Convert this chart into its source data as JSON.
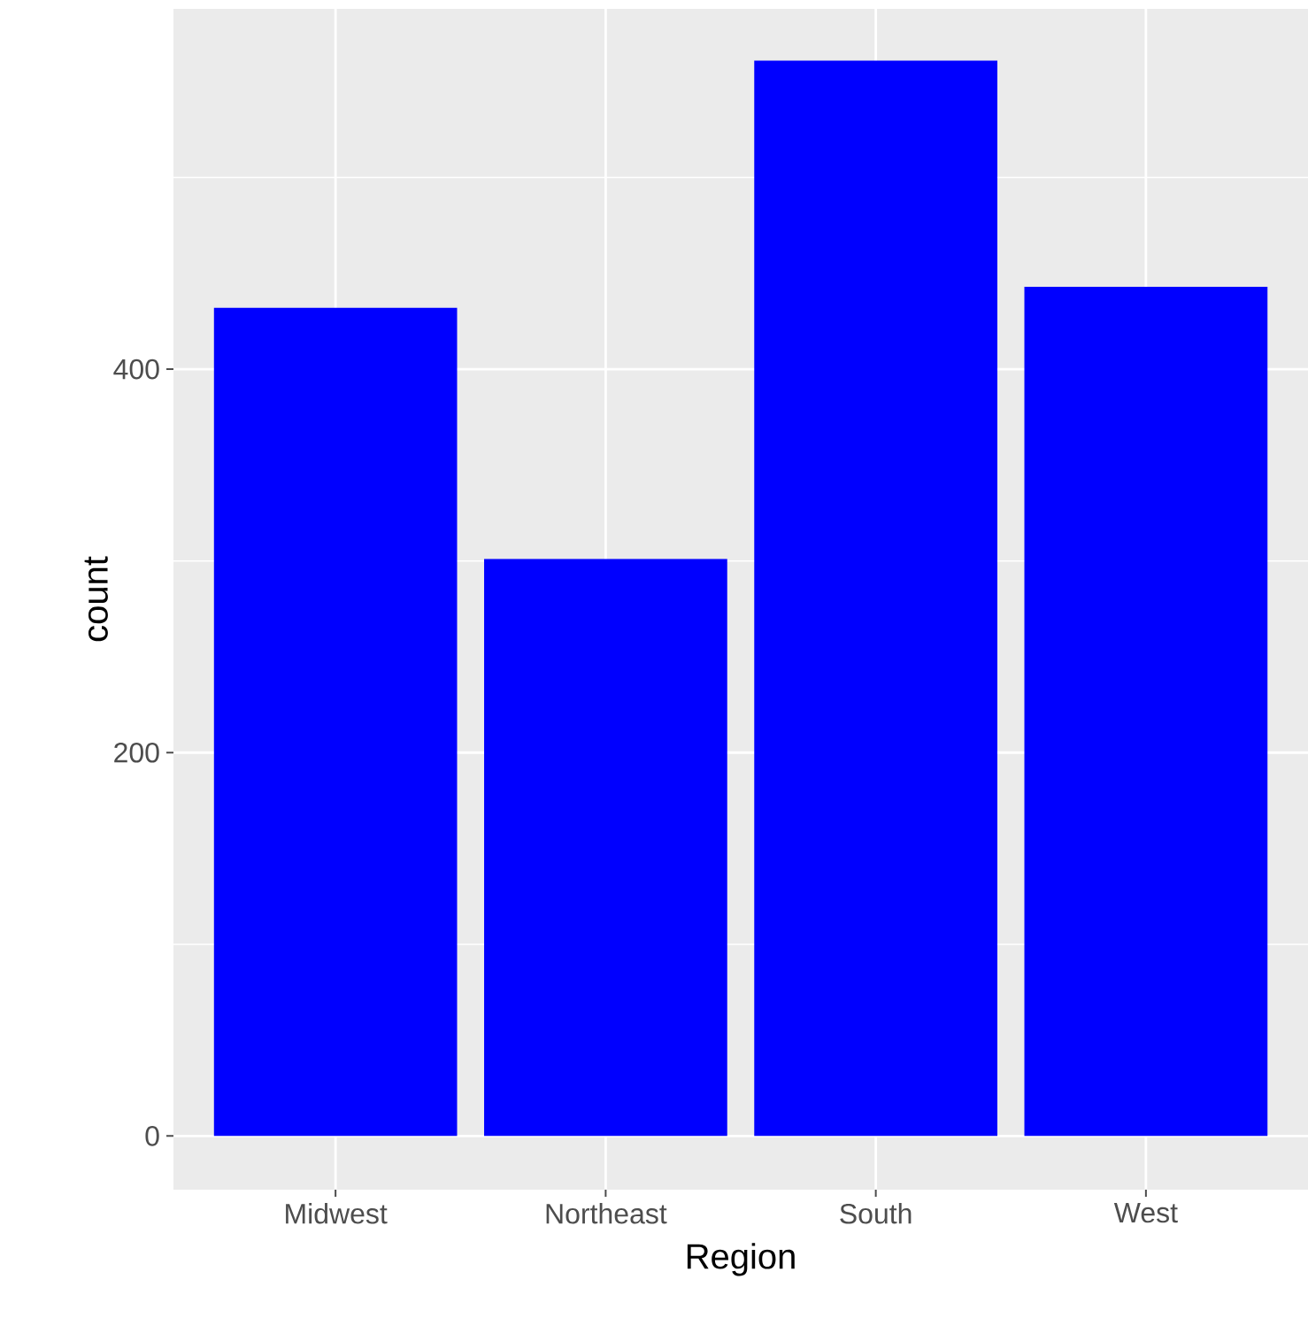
{
  "chart_data": {
    "type": "bar",
    "xlabel": "Region",
    "ylabel": "count",
    "categories": [
      "Midwest",
      "Northeast",
      "South",
      "West"
    ],
    "values": [
      432,
      301,
      561,
      443
    ],
    "color": "#0000ff",
    "ylim": [
      -28,
      588
    ],
    "yticks": [
      0,
      {
        "value": 100,
        "label": null
      },
      200,
      {
        "value": 300,
        "label": null
      },
      400,
      {
        "value": 500,
        "label": null
      }
    ],
    "grid": true
  }
}
